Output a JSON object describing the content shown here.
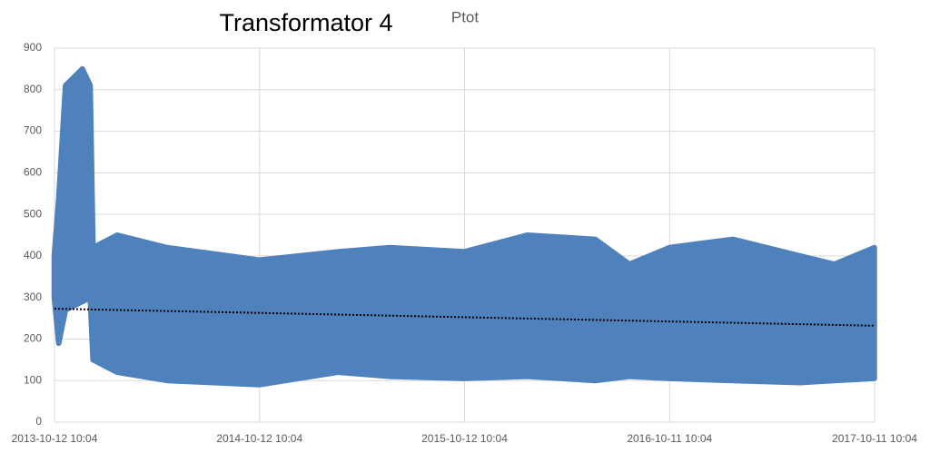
{
  "chart_data": {
    "type": "area-range",
    "title": "Transformator 4",
    "subtitle": "Ptot",
    "x": [
      "2013-10-12",
      "2013-10-20",
      "2013-11-01",
      "2013-12-01",
      "2013-12-15",
      "2013-12-20",
      "2014-02-01",
      "2014-05-01",
      "2014-10-12",
      "2015-03-01",
      "2015-06-01",
      "2015-10-12",
      "2016-02-01",
      "2016-06-01",
      "2016-08-01",
      "2016-10-11",
      "2017-02-01",
      "2017-06-01",
      "2017-08-01",
      "2017-10-11"
    ],
    "high": [
      400,
      540,
      810,
      850,
      810,
      420,
      450,
      420,
      390,
      410,
      420,
      410,
      450,
      440,
      380,
      420,
      440,
      400,
      380,
      420
    ],
    "low": [
      300,
      190,
      270,
      290,
      300,
      150,
      120,
      100,
      90,
      120,
      110,
      105,
      110,
      100,
      110,
      105,
      100,
      95,
      100,
      105
    ],
    "color": "#4f81bd",
    "trend": {
      "x": [
        "2013-10-12 10:04",
        "2017-10-11 10:04"
      ],
      "values": [
        273,
        232
      ],
      "color": "#000000"
    },
    "xlim": [
      "2013-10-12 10:04",
      "2017-10-11 10:04"
    ],
    "xticks": [
      "2013-10-12 10:04",
      "2014-10-12 10:04",
      "2015-10-12 10:04",
      "2016-10-11 10:04",
      "2017-10-11 10:04"
    ],
    "ylim": [
      0,
      900
    ],
    "yticks": [
      0,
      100,
      200,
      300,
      400,
      500,
      600,
      700,
      800,
      900
    ],
    "grid": true
  }
}
